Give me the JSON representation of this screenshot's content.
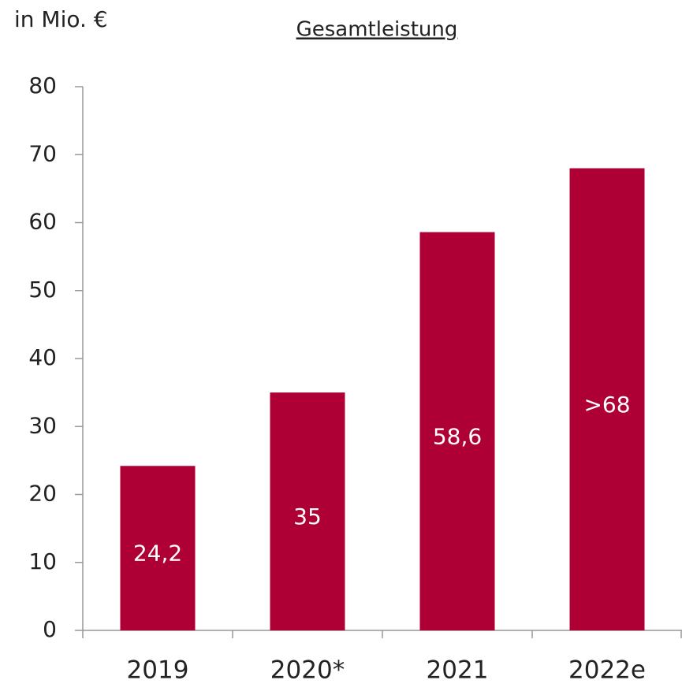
{
  "chart_data": {
    "type": "bar",
    "title": "Gesamtleistung",
    "y_axis_label": "in Mio. €",
    "categories": [
      "2019",
      "2020*",
      "2021",
      "2022e"
    ],
    "values": [
      24.2,
      35,
      58.6,
      68
    ],
    "value_labels": [
      "24,2",
      "35",
      "58,6",
      ">68"
    ],
    "color": "#ae0035",
    "ylim": [
      0,
      80
    ],
    "yticks": [
      0,
      10,
      20,
      30,
      40,
      50,
      60,
      70,
      80
    ],
    "grid": false
  }
}
